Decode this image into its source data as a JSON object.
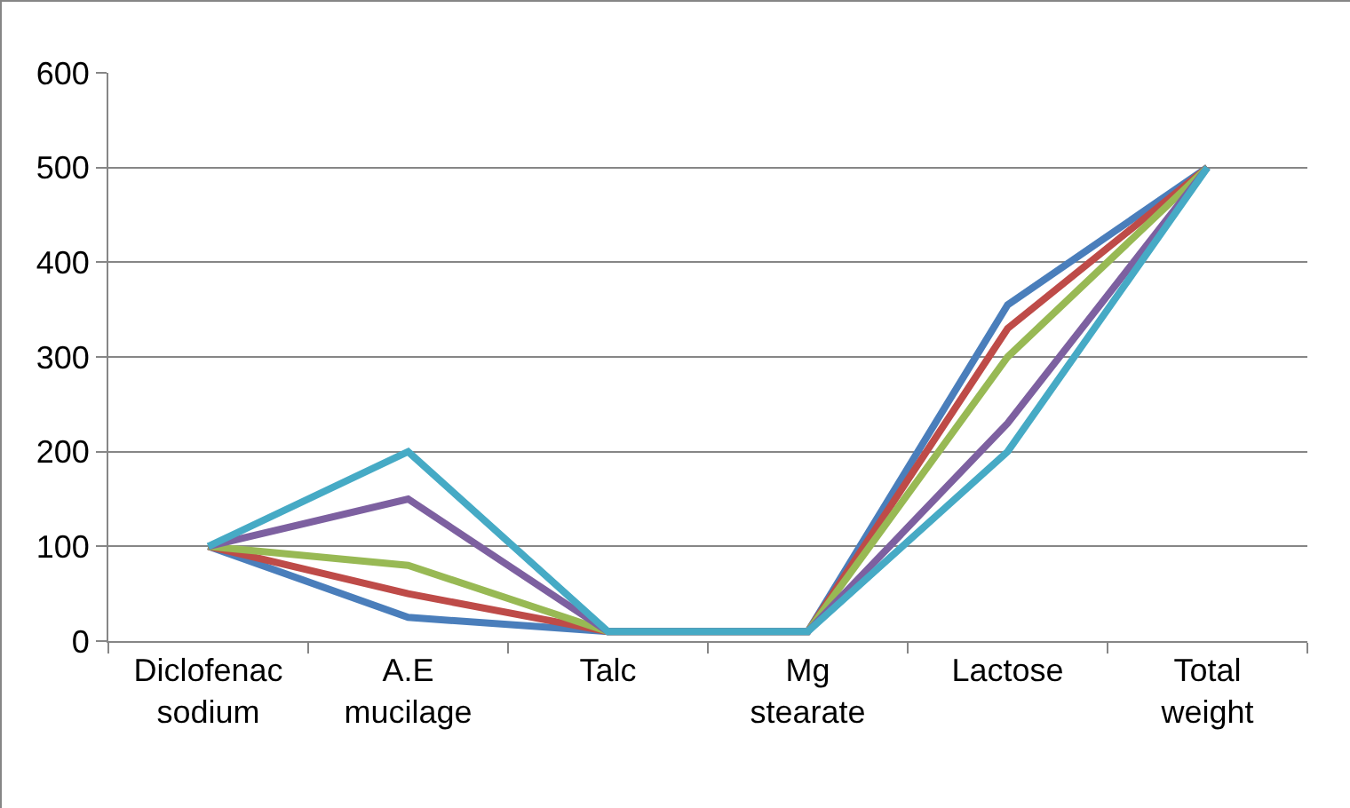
{
  "chart_data": {
    "type": "line",
    "categories": [
      "Diclofenac sodium",
      "A.E mucilage",
      "Talc",
      "Mg stearate",
      "Lactose",
      "Total weight"
    ],
    "series": [
      {
        "color": "#4a7ebb",
        "values": [
          100,
          25,
          10,
          10,
          355,
          500
        ]
      },
      {
        "color": "#be4b48",
        "values": [
          100,
          50,
          10,
          10,
          330,
          500
        ]
      },
      {
        "color": "#98b954",
        "values": [
          100,
          80,
          10,
          10,
          300,
          500
        ]
      },
      {
        "color": "#7d60a0",
        "values": [
          100,
          150,
          10,
          10,
          230,
          500
        ]
      },
      {
        "color": "#46aac5",
        "values": [
          100,
          200,
          10,
          10,
          200,
          500
        ]
      }
    ],
    "ylim": [
      0,
      600
    ],
    "yticks": [
      0,
      100,
      200,
      300,
      400,
      500,
      600
    ],
    "grid": "y",
    "marker": "none",
    "line_style": "solid"
  }
}
